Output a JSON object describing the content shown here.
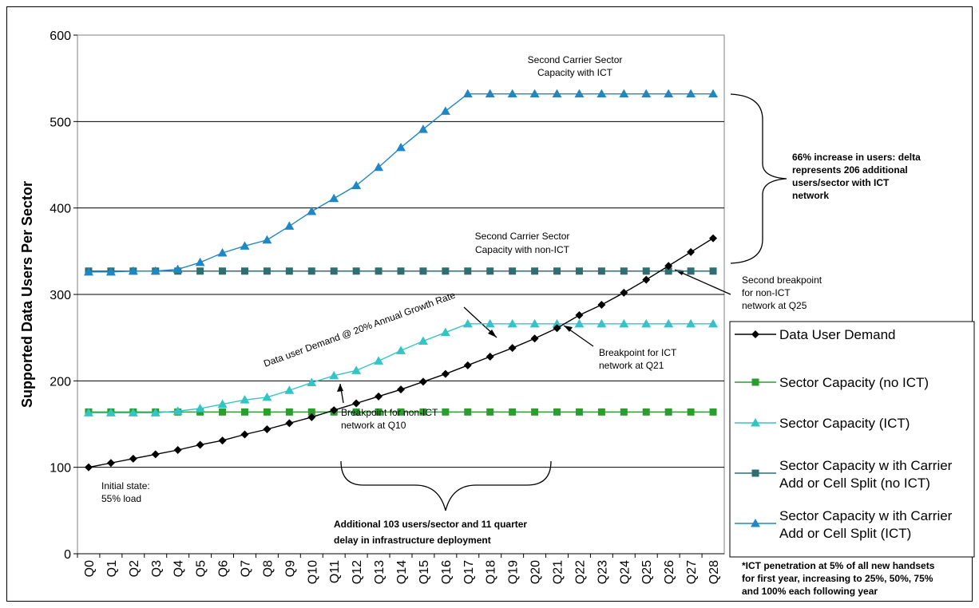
{
  "chart_data": {
    "type": "line",
    "ylabel": "Supported Data Users Per Sector",
    "xlabel": "",
    "ylim": [
      0,
      600
    ],
    "yticks": [
      0,
      100,
      200,
      300,
      400,
      500,
      600
    ],
    "grid": "horizontal",
    "legend_position": "right",
    "categories": [
      "Q0",
      "Q1",
      "Q2",
      "Q3",
      "Q4",
      "Q5",
      "Q6",
      "Q7",
      "Q8",
      "Q9",
      "Q10",
      "Q11",
      "Q12",
      "Q13",
      "Q14",
      "Q15",
      "Q16",
      "Q17",
      "Q18",
      "Q19",
      "Q20",
      "Q21",
      "Q22",
      "Q23",
      "Q24",
      "Q25",
      "Q26",
      "Q27",
      "Q28"
    ],
    "series": [
      {
        "name": "Data User Demand",
        "color": "#000000",
        "marker": "diamond",
        "values": [
          100,
          105,
          110,
          115,
          120,
          126,
          131,
          138,
          144,
          151,
          158,
          166,
          174,
          182,
          190,
          199,
          208,
          218,
          228,
          238,
          249,
          261,
          276,
          288,
          302,
          317,
          333,
          349,
          365
        ]
      },
      {
        "name": "Sector Capacity (no ICT)",
        "color": "#2e9b2e",
        "marker": "square",
        "values": [
          164,
          164,
          164,
          164,
          164,
          164,
          164,
          164,
          164,
          164,
          164,
          164,
          164,
          164,
          164,
          164,
          164,
          164,
          164,
          164,
          164,
          164,
          164,
          164,
          164,
          164,
          164,
          164,
          164
        ]
      },
      {
        "name": "Sector Capacity (ICT)",
        "color": "#33c5c5",
        "marker": "triangle",
        "values": [
          163,
          163,
          163,
          163,
          165,
          168,
          173,
          178,
          181,
          189,
          198,
          206,
          212,
          223,
          235,
          246,
          256,
          266,
          266,
          266,
          266,
          266,
          266,
          266,
          266,
          266,
          266,
          266,
          266
        ]
      },
      {
        "name": "Sector Capacity w ith Carrier Add or Cell Split (no ICT)",
        "color": "#2f6f72",
        "marker": "square",
        "values": [
          327,
          327,
          327,
          327,
          327,
          327,
          327,
          327,
          327,
          327,
          327,
          327,
          327,
          327,
          327,
          327,
          327,
          327,
          327,
          327,
          327,
          327,
          327,
          327,
          327,
          327,
          327,
          327,
          327
        ]
      },
      {
        "name": "Sector Capacity w ith Carrier Add or Cell Split (ICT)",
        "color": "#1f88c4",
        "marker": "triangle",
        "values": [
          326,
          326,
          327,
          327,
          329,
          337,
          348,
          356,
          363,
          379,
          396,
          411,
          426,
          447,
          470,
          491,
          512,
          532,
          532,
          532,
          532,
          532,
          532,
          532,
          532,
          532,
          532,
          532,
          532
        ]
      }
    ],
    "annotations": {
      "second_carrier_ict": [
        "Second Carrier Sector",
        "Capacity with ICT"
      ],
      "second_carrier_nonict": [
        "Second Carrier Sector",
        "Capacity with non-ICT"
      ],
      "demand_growth": "Data user Demand @ 20% Annual Growth Rate",
      "breakpoint_ict": [
        "Breakpoint for ICT",
        "network at Q21"
      ],
      "breakpoint_nonict": [
        "Breakpoint for non-ICT",
        "network at Q10"
      ],
      "second_breakpoint": [
        "Second breakpoint",
        "for non-ICT",
        "network at Q25"
      ],
      "initial_state": [
        "Initial state:",
        "55% load"
      ],
      "increase_66": [
        "66% increase in users: delta",
        "represents 206 additional",
        "users/sector with ICT",
        "network"
      ],
      "additional_103": [
        "Additional 103 users/sector and 11 quarter",
        "delay in infrastructure deployment"
      ],
      "ict_penetration": [
        "*ICT penetration at 5% of all new handsets",
        "for first year, increasing to 25%, 50%, 75%",
        "and 100% each following year"
      ]
    }
  }
}
